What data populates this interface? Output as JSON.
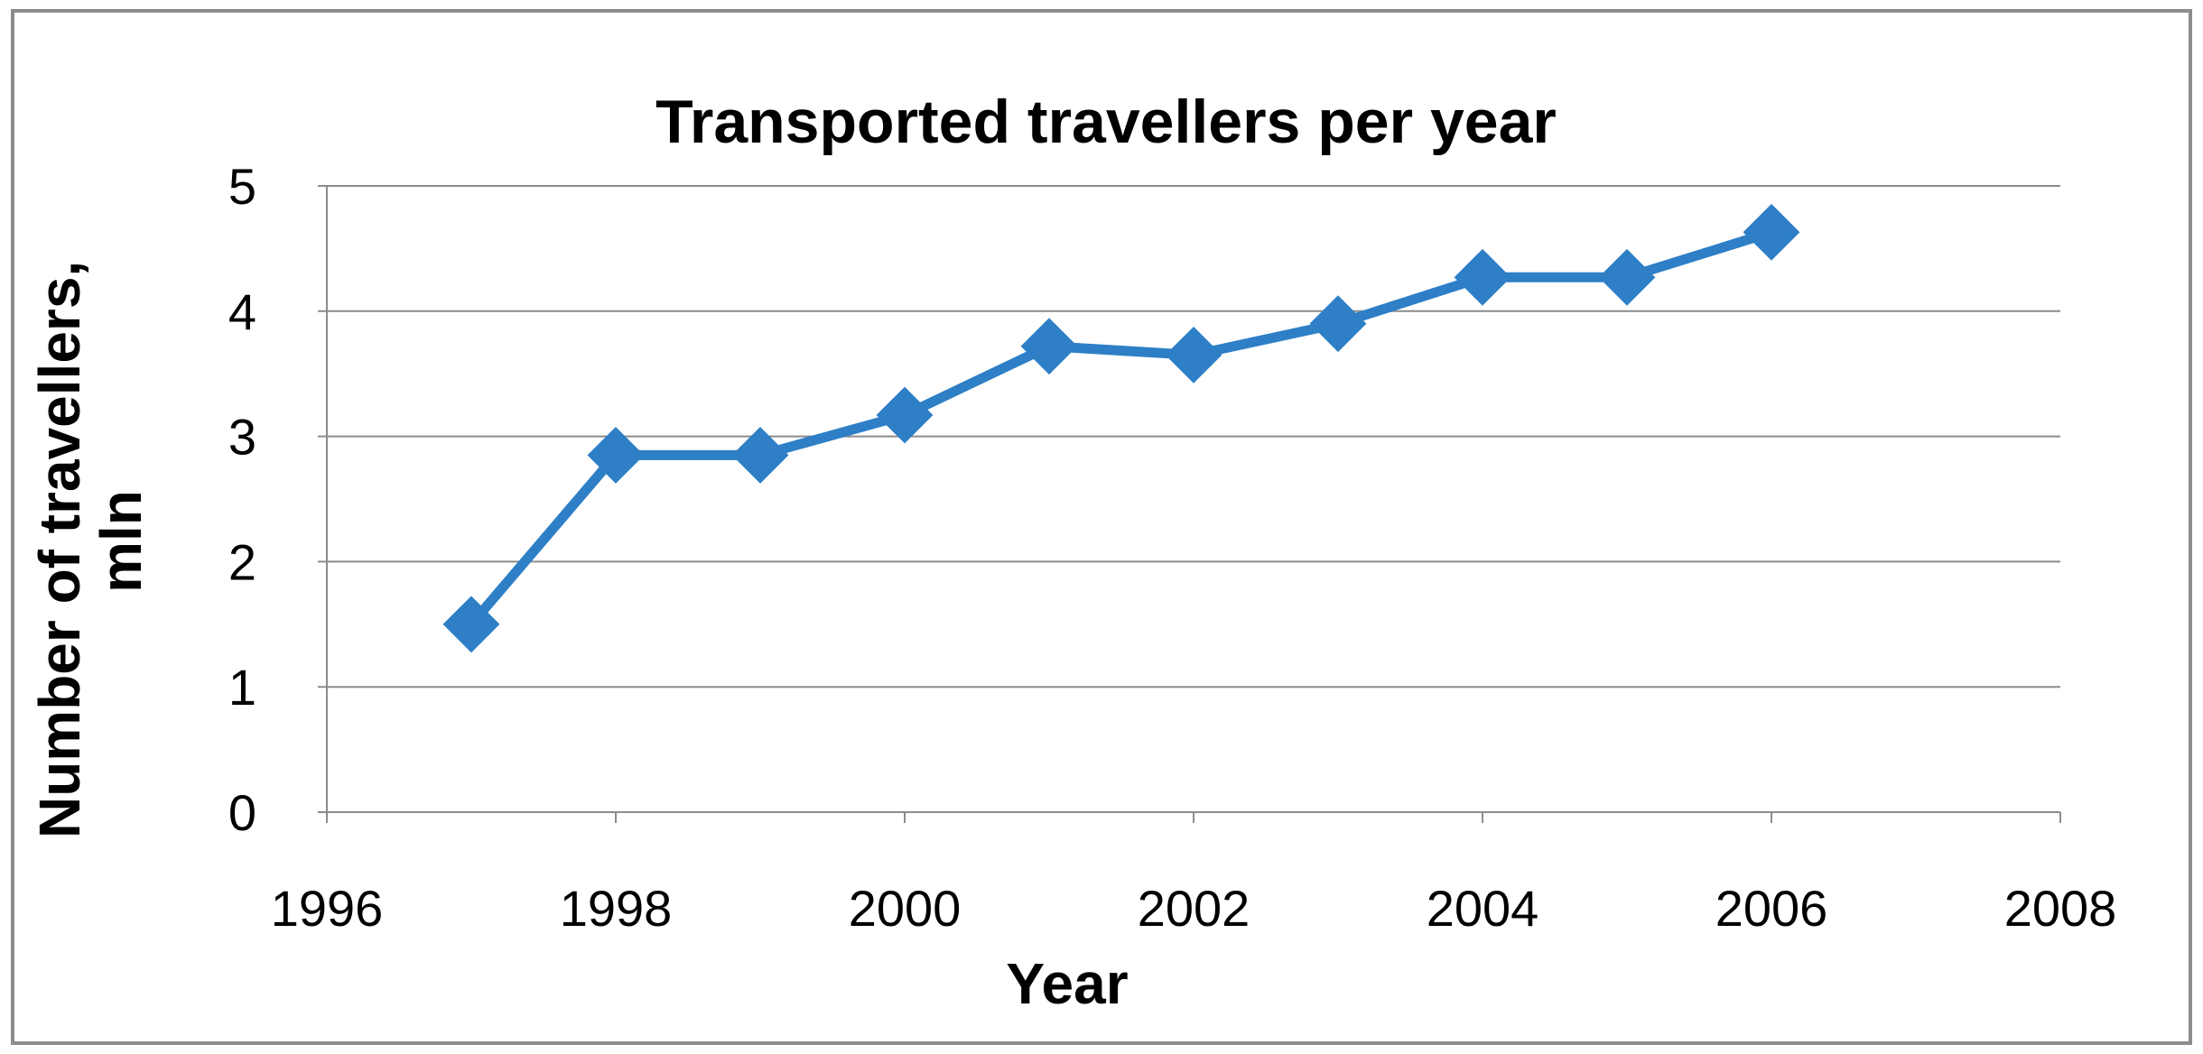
{
  "chart_data": {
    "type": "scatter",
    "title": "Transported travellers per year",
    "xlabel": "Year",
    "ylabel_lines": [
      "Number of travellers,",
      "mln"
    ],
    "xlim": [
      1996,
      2008
    ],
    "ylim": [
      0,
      5
    ],
    "x_ticks": [
      1996,
      1998,
      2000,
      2002,
      2004,
      2006,
      2008
    ],
    "y_ticks": [
      0,
      1,
      2,
      3,
      4,
      5
    ],
    "grid": "horizontal",
    "legend": "none",
    "line_color": "#2E7FC6",
    "marker": "diamond",
    "series": [
      {
        "x": [
          1997,
          1998,
          1999,
          2000,
          2001,
          2002,
          2003,
          2004,
          2005,
          2006
        ],
        "y": [
          1.5,
          2.85,
          2.85,
          3.17,
          3.72,
          3.65,
          3.9,
          4.27,
          4.27,
          4.63
        ]
      }
    ]
  }
}
